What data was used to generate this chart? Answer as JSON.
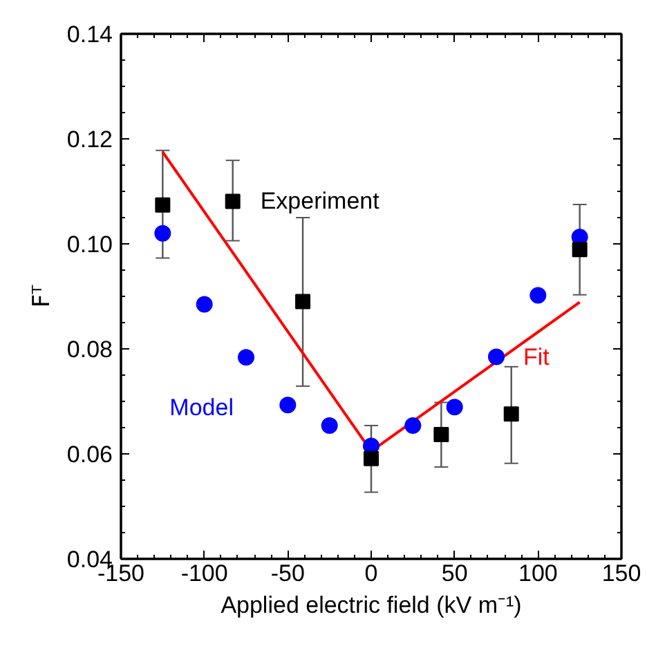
{
  "chart_data": {
    "type": "scatter",
    "xlabel": "Applied electric field (kV m⁻¹)",
    "ylabel": "Fᵀ",
    "xlim": [
      -150,
      150
    ],
    "xticks": [
      -150,
      -100,
      -50,
      0,
      50,
      100,
      150
    ],
    "ylim": [
      0.04,
      0.14
    ],
    "yticks": [
      {
        "value": 0.04,
        "label": "0.04"
      },
      {
        "value": 0.06,
        "label": "0.06"
      },
      {
        "value": 0.08,
        "label": "0.08"
      },
      {
        "value": 0.1,
        "label": "0.10"
      },
      {
        "value": 0.12,
        "label": "0.12"
      },
      {
        "value": 0.14,
        "label": "0.14"
      }
    ],
    "grid": false,
    "series": [
      {
        "name": "Fit",
        "type": "line",
        "color": "#ff0000",
        "line_style": "solid",
        "marker": "none",
        "x": [
          -125,
          0,
          125
        ],
        "values": [
          0.1175,
          0.0605,
          0.0889
        ]
      },
      {
        "name": "Model",
        "color": "#0000ff",
        "marker": "circle",
        "x": [
          -125,
          -100,
          -75,
          -50,
          -25,
          0,
          25,
          50,
          75,
          100,
          125
        ],
        "values": [
          0.102,
          0.0885,
          0.0784,
          0.0693,
          0.0654,
          0.0615,
          0.0654,
          0.0689,
          0.0785,
          0.0902,
          0.1013
        ]
      },
      {
        "name": "Experiment",
        "color": "#000000",
        "marker": "square",
        "x": [
          -125,
          -83,
          -41,
          0,
          42,
          84,
          125
        ],
        "values": [
          0.1074,
          0.1081,
          0.089,
          0.0591,
          0.0637,
          0.0676,
          0.0989
        ],
        "errors": [
          [
            0.0973,
            0.1178
          ],
          [
            0.1006,
            0.1159
          ],
          [
            0.0729,
            0.105
          ],
          [
            0.0527,
            0.0654
          ],
          [
            0.0575,
            0.0698
          ],
          [
            0.0582,
            0.0766
          ],
          [
            0.0903,
            0.1075
          ]
        ]
      }
    ]
  }
}
